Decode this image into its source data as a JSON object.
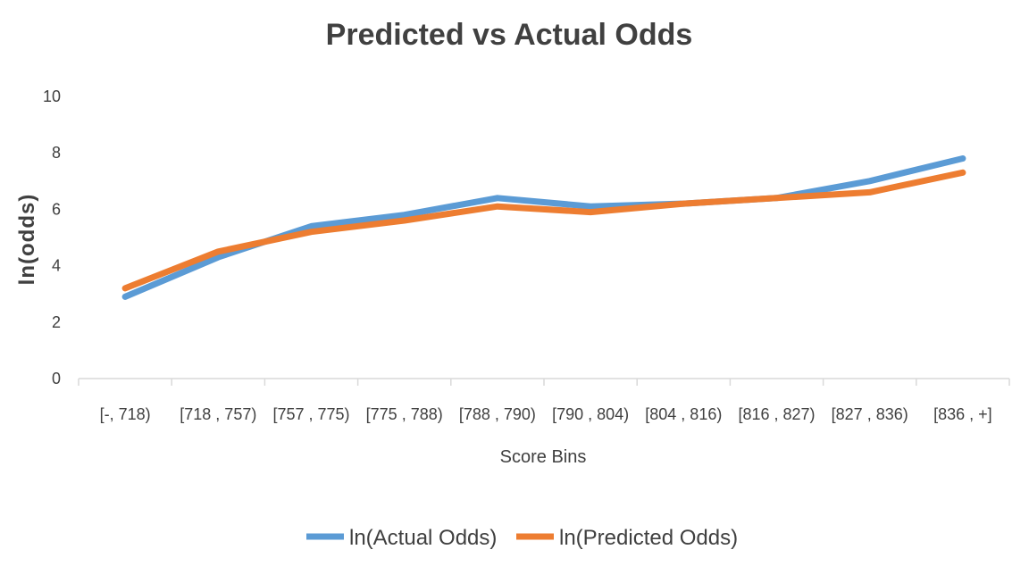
{
  "chart_data": {
    "type": "line",
    "title": "Predicted vs Actual Odds",
    "xlabel": "Score Bins",
    "ylabel": "ln(odds)",
    "categories": [
      "[-, 718)",
      "[718 , 757)",
      "[757 , 775)",
      "[775 , 788)",
      "[788 , 790)",
      "[790 , 804)",
      "[804 , 816)",
      "[816 , 827)",
      "[827 , 836)",
      "[836 , +]"
    ],
    "ylim": [
      0,
      10
    ],
    "yticks": [
      "0",
      "2",
      "4",
      "6",
      "8",
      "10"
    ],
    "grid": false,
    "legend_position": "bottom",
    "series": [
      {
        "name": "ln(Actual Odds)",
        "color": "#5B9BD5",
        "values": [
          2.9,
          4.3,
          5.4,
          5.8,
          6.4,
          6.1,
          6.2,
          6.4,
          7.0,
          7.8
        ]
      },
      {
        "name": "ln(Predicted Odds)",
        "color": "#ED7D31",
        "values": [
          3.2,
          4.5,
          5.2,
          5.6,
          6.1,
          5.9,
          6.2,
          6.4,
          6.6,
          7.3
        ]
      }
    ]
  }
}
